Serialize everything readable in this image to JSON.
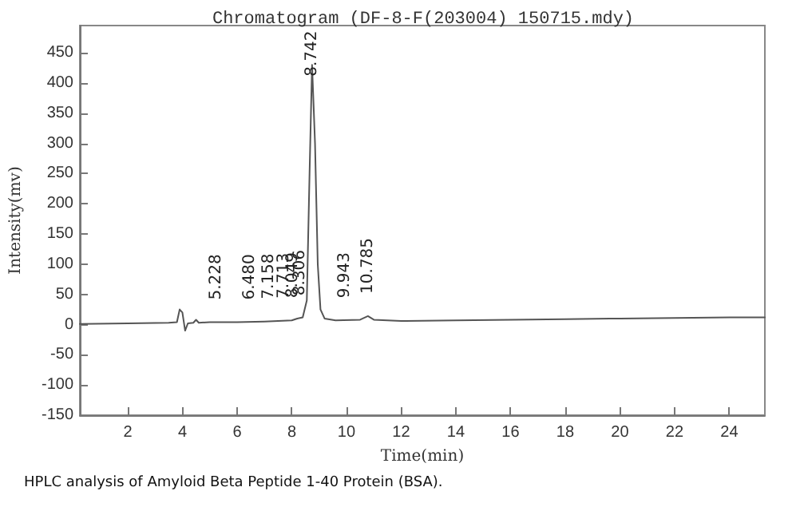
{
  "chart_data": {
    "type": "line",
    "title": "Chromatogram (DF-8-F(203004) 150715.mdy)",
    "xlabel": "Time(min)",
    "ylabel": "Intensity(mv)",
    "x": [
      0.25,
      2,
      3.5,
      3.8,
      3.9,
      4.0,
      4.1,
      4.2,
      4.4,
      4.5,
      4.6,
      5,
      6,
      7,
      7.5,
      8,
      8.2,
      8.4,
      8.55,
      8.65,
      8.742,
      8.85,
      8.95,
      9.05,
      9.2,
      9.6,
      10.5,
      10.785,
      11,
      12,
      14,
      16,
      18,
      20,
      22,
      24,
      25.3
    ],
    "series": [
      {
        "color": "#555555",
        "values": [
          1,
          2,
          3,
          4,
          25,
          20,
          -10,
          2,
          3,
          8,
          3,
          4,
          4,
          5,
          6,
          7,
          10,
          12,
          40,
          250,
          430,
          300,
          100,
          25,
          10,
          7,
          8,
          14,
          8,
          6,
          7,
          8,
          9,
          10,
          11,
          12,
          12
        ]
      }
    ],
    "xlim": [
      0.25,
      25.3
    ],
    "xticks": [
      2,
      4,
      6,
      8,
      10,
      12,
      14,
      16,
      18,
      20,
      22,
      24
    ],
    "ylim": [
      -150,
      495
    ],
    "yticks": [
      -150,
      -100,
      -50,
      0,
      50,
      100,
      150,
      200,
      250,
      300,
      350,
      400,
      450
    ],
    "grid": false,
    "marker": "none",
    "line_style": "solid",
    "annotations": [
      {
        "text": "5.228",
        "x": 5.228,
        "y": 4
      },
      {
        "text": "6.480",
        "x": 6.48,
        "y": 4
      },
      {
        "text": "7.158",
        "x": 7.158,
        "y": 5
      },
      {
        "text": "7.713",
        "x": 7.713,
        "y": 6
      },
      {
        "text": "8.049",
        "x": 8.049,
        "y": 7
      },
      {
        "text": "8.306",
        "x": 8.306,
        "y": 11
      },
      {
        "text": "8.742",
        "x": 8.742,
        "y": 430
      },
      {
        "text": "9.943",
        "x": 9.943,
        "y": 7
      },
      {
        "text": "10.785",
        "x": 10.785,
        "y": 14
      },
      "HPLC analysis of Amyloid Beta Peptide 1-40 Protein (BSA)."
    ]
  }
}
